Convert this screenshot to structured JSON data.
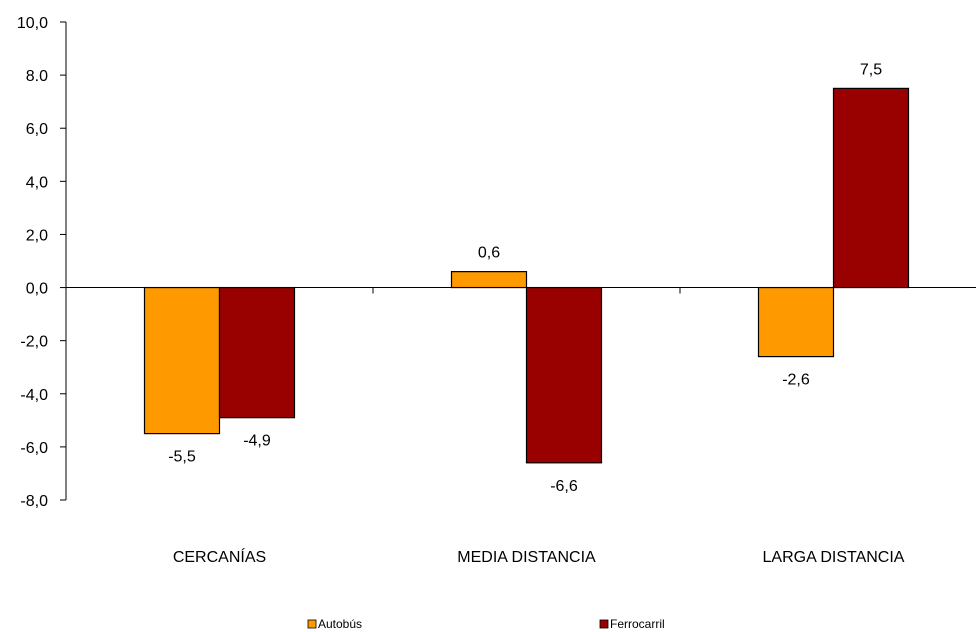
{
  "chart_data": {
    "type": "bar",
    "categories": [
      "CERCANÍAS",
      "MEDIA DISTANCIA",
      "LARGA DISTANCIA"
    ],
    "series": [
      {
        "name": "Autobús",
        "values": [
          -5.5,
          0.6,
          -2.6
        ],
        "color": "#FF9900"
      },
      {
        "name": "Ferrocarril",
        "values": [
          -4.9,
          -6.6,
          7.5
        ],
        "color": "#990000"
      }
    ],
    "data_labels": [
      [
        "-5,5",
        "0,6",
        "-2,6"
      ],
      [
        "-4,9",
        "-6,6",
        "7,5"
      ]
    ],
    "ylim": [
      -8,
      10
    ],
    "y_ticks": [
      "10,0",
      "8.0",
      "6,0",
      "4,0",
      "2,0",
      "0,0",
      "-2,0",
      "-4,0",
      "-6,0",
      "-8,0"
    ],
    "y_tick_values": [
      10,
      8,
      6,
      4,
      2,
      0,
      -2,
      -4,
      -6,
      -8
    ],
    "grid": false,
    "legend_position": "bottom",
    "title": "",
    "xlabel": "",
    "ylabel": ""
  }
}
